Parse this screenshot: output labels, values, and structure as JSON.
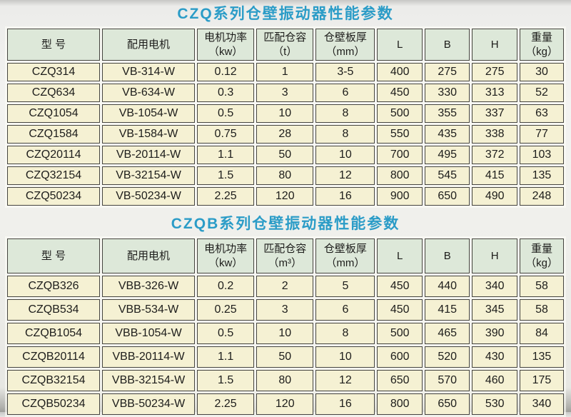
{
  "colors": {
    "title_accent": "#2b9cc7",
    "header_cell_bg": "#dde8d9",
    "data_cell_bg": "#f5f1d3",
    "cell_border": "#45443f"
  },
  "sections": [
    {
      "title": "CZQ系列仓壁振动器性能参数",
      "columns": [
        "型 号",
        "配用电机",
        "电机功率\n（kw）",
        "匹配仓容\n（t）",
        "仓壁板厚\n（mm）",
        "L",
        "B",
        "H",
        "重量\n（kg）"
      ],
      "rows": [
        [
          "CZQ314",
          "VB-314-W",
          "0.12",
          "1",
          "3-5",
          "400",
          "275",
          "275",
          "30"
        ],
        [
          "CZQ634",
          "VB-634-W",
          "0.3",
          "3",
          "6",
          "450",
          "330",
          "313",
          "52"
        ],
        [
          "CZQ1054",
          "VB-1054-W",
          "0.5",
          "10",
          "8",
          "500",
          "355",
          "337",
          "63"
        ],
        [
          "CZQ1584",
          "VB-1584-W",
          "0.75",
          "28",
          "8",
          "550",
          "435",
          "338",
          "77"
        ],
        [
          "CZQ20114",
          "VB-20114-W",
          "1.1",
          "50",
          "10",
          "700",
          "495",
          "372",
          "103"
        ],
        [
          "CZQ32154",
          "VB-32154-W",
          "1.5",
          "80",
          "12",
          "800",
          "545",
          "415",
          "135"
        ],
        [
          "CZQ50234",
          "VB-50234-W",
          "2.25",
          "120",
          "16",
          "900",
          "650",
          "490",
          "248"
        ]
      ]
    },
    {
      "title": "CZQB系列仓壁振动器性能参数",
      "columns": [
        "型 号",
        "配用电机",
        "电机功率\n（kw）",
        "匹配仓容\n（m³）",
        "仓壁板厚\n（mm）",
        "L",
        "B",
        "H",
        "重量\n（kg）"
      ],
      "rows": [
        [
          "CZQB326",
          "VBB-326-W",
          "0.2",
          "2",
          "5",
          "450",
          "440",
          "340",
          "58"
        ],
        [
          "CZQB534",
          "VBB-534-W",
          "0.25",
          "3",
          "6",
          "450",
          "415",
          "345",
          "58"
        ],
        [
          "CZQB1054",
          "VBB-1054-W",
          "0.5",
          "10",
          "8",
          "500",
          "465",
          "390",
          "84"
        ],
        [
          "CZQB20114",
          "VBB-20114-W",
          "1.1",
          "50",
          "10",
          "600",
          "520",
          "430",
          "135"
        ],
        [
          "CZQB32154",
          "VBB-32154-W",
          "1.5",
          "80",
          "12",
          "650",
          "570",
          "460",
          "175"
        ],
        [
          "CZQB50234",
          "VBB-50234-W",
          "2.25",
          "120",
          "16",
          "800",
          "650",
          "530",
          "340"
        ]
      ]
    }
  ]
}
